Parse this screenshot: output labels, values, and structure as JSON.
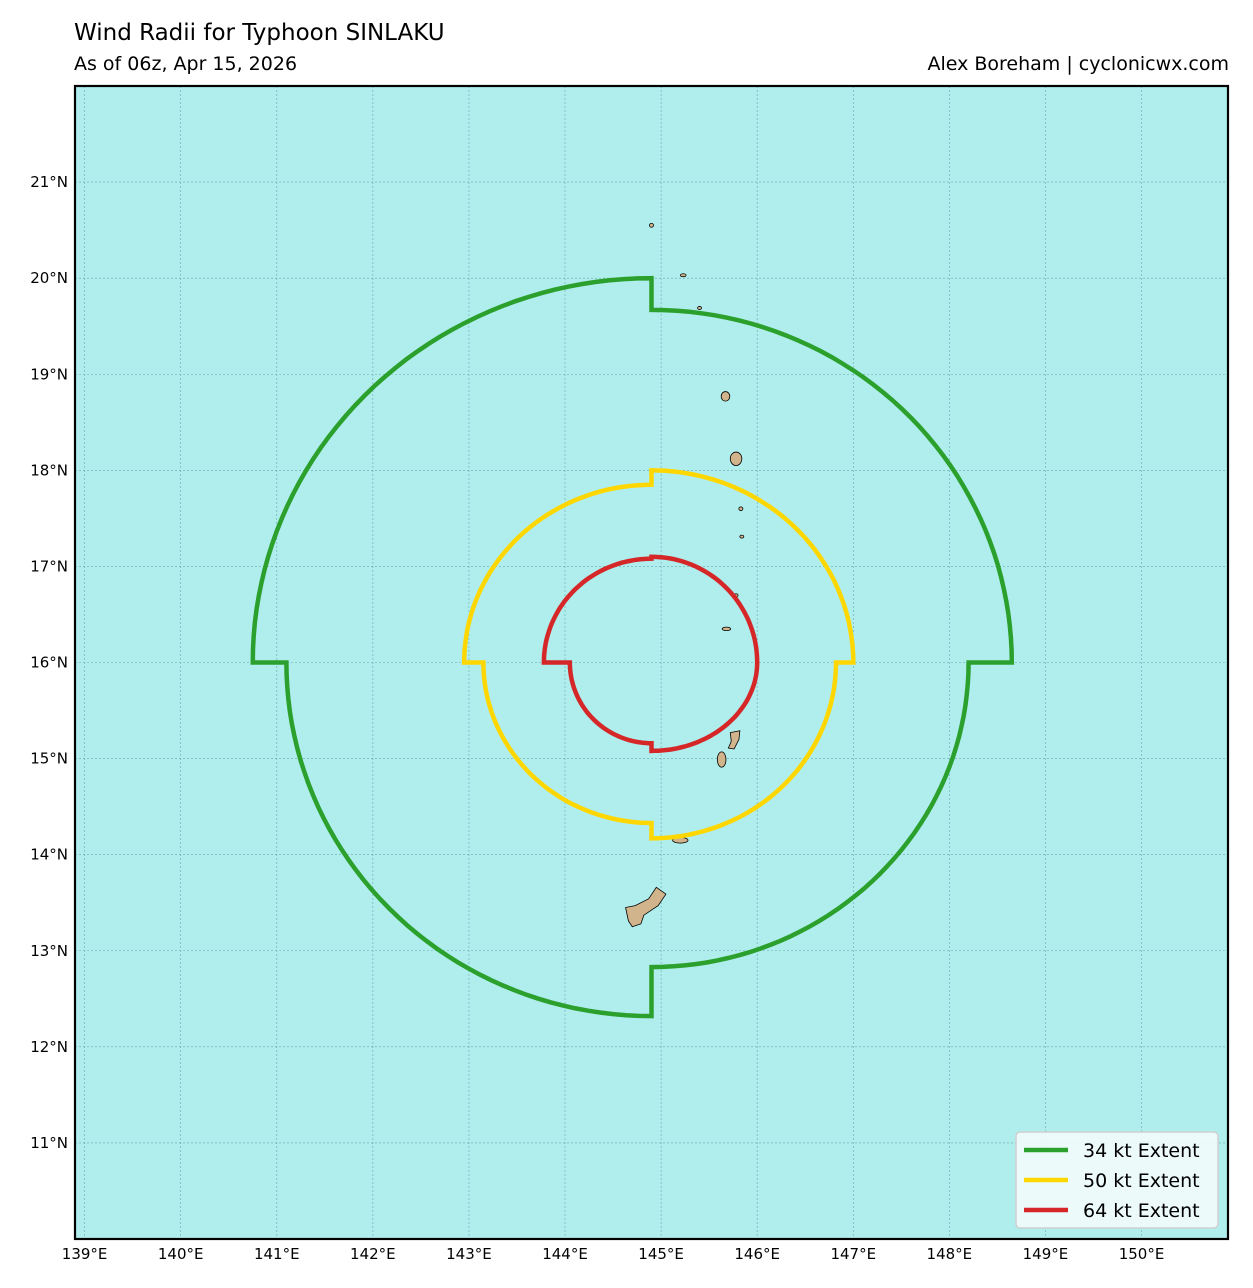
{
  "header": {
    "title": "Wind Radii for Typhoon SINLAKU",
    "subtitle": "As of 06z, Apr 15, 2026",
    "credit": "Alex Boreham | cyclonicwx.com"
  },
  "colors": {
    "ocean": "#b0eeee",
    "land": "#d2b48c",
    "grid": "#4a8a8a",
    "r34": "#2ca02c",
    "r50": "#ffd700",
    "r64": "#d62728"
  },
  "chart_data": {
    "type": "map",
    "lon_range": [
      138.9,
      150.9
    ],
    "lat_range": [
      10.0,
      22.0
    ],
    "lon_ticks": [
      {
        "value": 139,
        "label": "139°E"
      },
      {
        "value": 140,
        "label": "140°E"
      },
      {
        "value": 141,
        "label": "141°E"
      },
      {
        "value": 142,
        "label": "142°E"
      },
      {
        "value": 143,
        "label": "143°E"
      },
      {
        "value": 144,
        "label": "144°E"
      },
      {
        "value": 145,
        "label": "145°E"
      },
      {
        "value": 146,
        "label": "146°E"
      },
      {
        "value": 147,
        "label": "147°E"
      },
      {
        "value": 148,
        "label": "148°E"
      },
      {
        "value": 149,
        "label": "149°E"
      },
      {
        "value": 150,
        "label": "150°E"
      }
    ],
    "lat_ticks": [
      {
        "value": 11,
        "label": "11°N"
      },
      {
        "value": 12,
        "label": "12°N"
      },
      {
        "value": 13,
        "label": "13°N"
      },
      {
        "value": 14,
        "label": "14°N"
      },
      {
        "value": 15,
        "label": "15°N"
      },
      {
        "value": 16,
        "label": "16°N"
      },
      {
        "value": 17,
        "label": "17°N"
      },
      {
        "value": 18,
        "label": "18°N"
      },
      {
        "value": 19,
        "label": "19°N"
      },
      {
        "value": 20,
        "label": "20°N"
      },
      {
        "value": 21,
        "label": "21°N"
      }
    ],
    "center": {
      "lon": 144.9,
      "lat": 16.0
    },
    "wind_radii": [
      {
        "name": "34 kt Extent",
        "color": "#2ca02c",
        "ne": [
          3.75,
          3.67
        ],
        "se": [
          3.3,
          3.17
        ],
        "sw": [
          3.8,
          3.68
        ],
        "nw": [
          4.15,
          4.0
        ]
      },
      {
        "name": "50 kt Extent",
        "color": "#ffd700",
        "ne": [
          2.1,
          2.0
        ],
        "se": [
          1.92,
          1.83
        ],
        "sw": [
          1.75,
          1.67
        ],
        "nw": [
          1.95,
          1.85
        ]
      },
      {
        "name": "64 kt Extent",
        "color": "#d62728",
        "ne": [
          1.1,
          1.1
        ],
        "se": [
          1.1,
          0.92
        ],
        "sw": [
          0.85,
          0.84
        ],
        "nw": [
          1.12,
          1.08
        ]
      }
    ],
    "islands": [
      {
        "name": "Farallon de Pajaros",
        "lon": 144.9,
        "lat": 20.55,
        "rx": 0.02,
        "ry": 0.02
      },
      {
        "name": "Maug",
        "lon": 145.23,
        "lat": 20.03,
        "rx": 0.03,
        "ry": 0.015
      },
      {
        "name": "Asuncion",
        "lon": 145.4,
        "lat": 19.69,
        "rx": 0.02,
        "ry": 0.015
      },
      {
        "name": "Agrihan",
        "lon": 145.67,
        "lat": 18.77,
        "rx": 0.045,
        "ry": 0.05
      },
      {
        "name": "Pagan",
        "lon": 145.78,
        "lat": 18.12,
        "rx": 0.06,
        "ry": 0.07
      },
      {
        "name": "Alamagan",
        "lon": 145.83,
        "lat": 17.6,
        "rx": 0.02,
        "ry": 0.02
      },
      {
        "name": "Guguan",
        "lon": 145.84,
        "lat": 17.31,
        "rx": 0.015,
        "ry": 0.01
      },
      {
        "name": "Sarigan",
        "lon": 145.78,
        "lat": 16.7,
        "rx": 0.01,
        "ry": 0.01
      },
      {
        "name": "Anatahan",
        "lon": 145.68,
        "lat": 16.35,
        "rx": 0.045,
        "ry": 0.018
      },
      {
        "name": "Tinian",
        "lon": 145.63,
        "lat": 14.99,
        "rx": 0.045,
        "ry": 0.08
      },
      {
        "name": "Rota",
        "lon": 145.2,
        "lat": 14.15,
        "rx": 0.08,
        "ry": 0.03
      }
    ],
    "legend": {
      "placement": "bottom-right",
      "entries": [
        {
          "label": "34 kt Extent",
          "color": "#2ca02c"
        },
        {
          "label": "50 kt Extent",
          "color": "#ffd700"
        },
        {
          "label": "64 kt Extent",
          "color": "#d62728"
        }
      ]
    }
  }
}
